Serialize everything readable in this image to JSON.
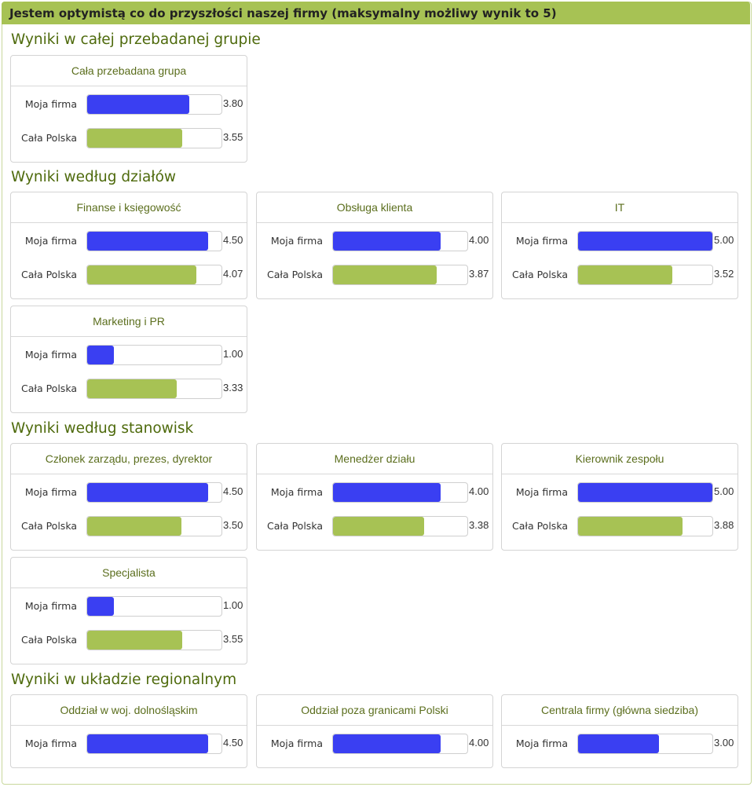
{
  "page": {
    "title": "Jestem optymistą co do przyszłości naszej firmy (maksymalny możliwy wynik to 5)",
    "colors": {
      "header_bg": "#a7c254",
      "moja_firma": "#3a3ff2",
      "cala_polska": "#a7c254",
      "section_title": "#4e6a0c"
    }
  },
  "chart_data": {
    "type": "bar",
    "max_value": 5,
    "series_labels": {
      "mine": "Moja firma",
      "pl": "Cała Polska"
    },
    "sections": [
      {
        "title": "Wyniki w całej przebadanej grupie",
        "groups": [
          {
            "name": "Cała przebadana grupa",
            "mine": "3.80",
            "pl": "3.55"
          }
        ]
      },
      {
        "title": "Wyniki według działów",
        "groups": [
          {
            "name": "Finanse i księgowość",
            "mine": "4.50",
            "pl": "4.07"
          },
          {
            "name": "Obsługa klienta",
            "mine": "4.00",
            "pl": "3.87"
          },
          {
            "name": "IT",
            "mine": "5.00",
            "pl": "3.52"
          },
          {
            "name": "Marketing i PR",
            "mine": "1.00",
            "pl": "3.33"
          }
        ]
      },
      {
        "title": "Wyniki według stanowisk",
        "groups": [
          {
            "name": "Członek zarządu, prezes, dyrektor",
            "mine": "4.50",
            "pl": "3.50"
          },
          {
            "name": "Menedżer działu",
            "mine": "4.00",
            "pl": "3.38"
          },
          {
            "name": "Kierownik zespołu",
            "mine": "5.00",
            "pl": "3.88"
          },
          {
            "name": "Specjalista",
            "mine": "1.00",
            "pl": "3.55"
          }
        ]
      },
      {
        "title": "Wyniki w układzie regionalnym",
        "groups": [
          {
            "name": "Oddział w woj. dolnośląskim",
            "mine": "4.50"
          },
          {
            "name": "Oddział poza granicami Polski",
            "mine": "4.00"
          },
          {
            "name": "Centrala firmy (główna siedziba)",
            "mine": "3.00"
          }
        ]
      }
    ]
  }
}
